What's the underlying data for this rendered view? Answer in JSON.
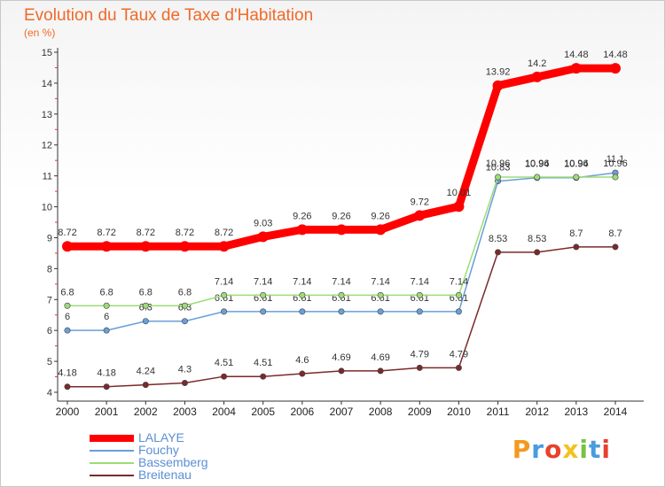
{
  "title": "Evolution du Taux de Taxe d'Habitation",
  "subtitle": "(en %)",
  "logo": {
    "text": "Proxiti",
    "colors": [
      "#f29a1f",
      "#4a9be0",
      "#e8412c",
      "#f2c21f",
      "#7ac143",
      "#4a9be0",
      "#e8412c"
    ]
  },
  "chart_data": {
    "type": "line",
    "x": [
      2000,
      2001,
      2002,
      2003,
      2004,
      2005,
      2006,
      2007,
      2008,
      2009,
      2010,
      2011,
      2012,
      2013,
      2014
    ],
    "ylim": [
      4,
      15
    ],
    "yticks": [
      4,
      5,
      6,
      7,
      8,
      9,
      10,
      11,
      12,
      13,
      14,
      15
    ],
    "grid": false,
    "legend": "bottom-left",
    "series": [
      {
        "name": "LALAYE",
        "color": "#ff0000",
        "values": [
          8.72,
          8.72,
          8.72,
          8.72,
          8.72,
          9.03,
          9.26,
          9.26,
          9.26,
          9.72,
          10.01,
          13.92,
          14.2,
          14.48,
          14.48
        ],
        "labels": [
          "8.72",
          "8.72",
          "8.72",
          "8.72",
          "8.72",
          "9.03",
          "9.26",
          "9.26",
          "9.26",
          "9.72",
          "10.01",
          "13.92",
          "14.2",
          "14.48",
          "14.48"
        ]
      },
      {
        "name": "Fouchy",
        "color": "#6a9fd8",
        "values": [
          6,
          6,
          6.3,
          6.3,
          6.61,
          6.61,
          6.61,
          6.61,
          6.61,
          6.61,
          6.61,
          10.83,
          10.94,
          10.94,
          11.1
        ],
        "labels": [
          "6",
          "6",
          "6.3",
          "6.3",
          "6.61",
          "6.61",
          "6.61",
          "6.61",
          "6.61",
          "6.61",
          "6.61",
          "10.83",
          "10.94",
          "10.94",
          "11.1"
        ]
      },
      {
        "name": "Bassemberg",
        "color": "#9ddc78",
        "values": [
          6.8,
          6.8,
          6.8,
          6.8,
          7.14,
          7.14,
          7.14,
          7.14,
          7.14,
          7.14,
          7.14,
          10.96,
          10.96,
          10.96,
          10.96
        ],
        "labels": [
          "6.8",
          "6.8",
          "6.8",
          "6.8",
          "7.14",
          "7.14",
          "7.14",
          "7.14",
          "7.14",
          "7.14",
          "7.14",
          "10.96",
          "10.96",
          "10.96",
          "10.96"
        ]
      },
      {
        "name": "Breitenau",
        "color": "#7a2a2a",
        "values": [
          4.18,
          4.18,
          4.24,
          4.3,
          4.51,
          4.51,
          4.6,
          4.69,
          4.69,
          4.79,
          4.79,
          8.53,
          8.53,
          8.7,
          8.7
        ],
        "labels": [
          "4.18",
          "4.18",
          "4.24",
          "4.3",
          "4.51",
          "4.51",
          "4.6",
          "4.69",
          "4.69",
          "4.79",
          "4.79",
          "8.53",
          "8.53",
          "8.7",
          "8.7"
        ]
      }
    ]
  }
}
